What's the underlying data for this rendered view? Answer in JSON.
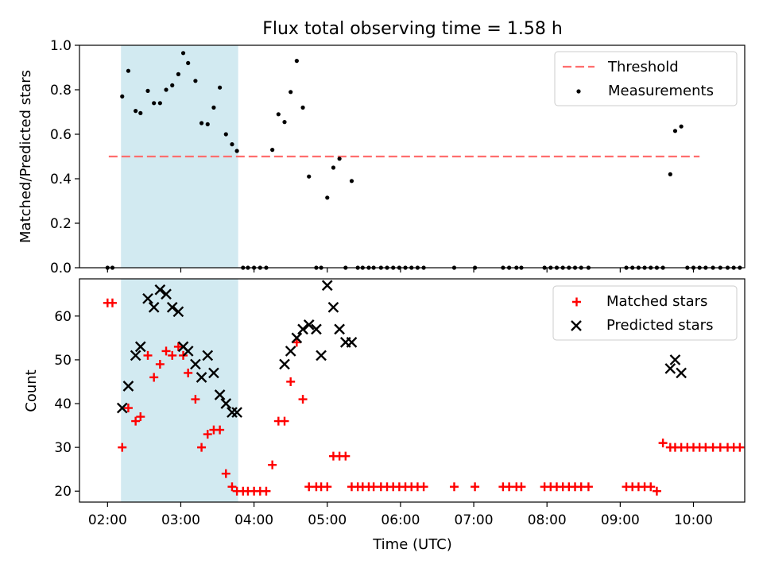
{
  "title": "Flux total observing time = 1.58 h",
  "colors": {
    "highlight": "#add8e6",
    "threshold": "#ff6e6e",
    "measurements": "#000000",
    "matched": "#ff0000",
    "predicted": "#000000"
  },
  "chart_data": [
    {
      "type": "scatter",
      "ylabel": "Matched/Predicted stars",
      "ylim": [
        0,
        1.0
      ],
      "yticks": [
        "0.0",
        "0.2",
        "0.4",
        "0.6",
        "0.8",
        "1.0"
      ],
      "xlim": [
        "01:37",
        "10:42"
      ],
      "highlight_span": [
        "02:11",
        "03:47"
      ],
      "legend_position": "top-right",
      "threshold": {
        "name": "Threshold",
        "y": 0.5,
        "x_range": [
          "02:01",
          "10:05"
        ]
      },
      "series": [
        {
          "name": "Measurements",
          "x": [
            "02:00",
            "02:04",
            "02:12",
            "02:17",
            "02:23",
            "02:27",
            "02:33",
            "02:38",
            "02:43",
            "02:48",
            "02:53",
            "02:58",
            "03:02",
            "03:06",
            "03:12",
            "03:17",
            "03:22",
            "03:27",
            "03:32",
            "03:37",
            "03:42",
            "03:46",
            "03:51",
            "03:55",
            "04:00",
            "04:05",
            "04:10",
            "04:15",
            "04:20",
            "04:25",
            "04:30",
            "04:35",
            "04:40",
            "04:45",
            "04:51",
            "04:55",
            "05:00",
            "05:05",
            "05:10",
            "05:15",
            "05:20",
            "05:25",
            "05:29",
            "05:34",
            "05:38",
            "05:44",
            "05:49",
            "05:54",
            "05:59",
            "06:04",
            "06:09",
            "06:14",
            "06:19",
            "06:44",
            "07:01",
            "07:24",
            "07:29",
            "07:35",
            "07:39",
            "07:58",
            "08:03",
            "08:08",
            "08:13",
            "08:18",
            "08:23",
            "08:28",
            "08:34",
            "09:05",
            "09:10",
            "09:15",
            "09:20",
            "09:25",
            "09:30",
            "09:35",
            "09:41",
            "09:45",
            "09:50",
            "09:55",
            "10:00",
            "10:05",
            "10:10",
            "10:16",
            "10:22",
            "10:28",
            "10:33",
            "10:38"
          ],
          "y": [
            0,
            0,
            0.77,
            0.885,
            0.705,
            0.695,
            0.795,
            0.74,
            0.74,
            0.8,
            0.82,
            0.87,
            0.965,
            0.92,
            0.84,
            0.65,
            0.645,
            0.72,
            0.81,
            0.6,
            0.555,
            0.525,
            0,
            0,
            0,
            0,
            0,
            0.53,
            0.69,
            0.655,
            0.79,
            0.93,
            0.72,
            0.41,
            0,
            0,
            0.315,
            0.45,
            0.49,
            0,
            0.39,
            0,
            0,
            0,
            0,
            0,
            0,
            0,
            0,
            0,
            0,
            0,
            0,
            0,
            0,
            0,
            0,
            0,
            0,
            0,
            0,
            0,
            0,
            0,
            0,
            0,
            0,
            0,
            0,
            0,
            0,
            0,
            0,
            0,
            0.42,
            0.615,
            0.635,
            0,
            0,
            0,
            0,
            0,
            0,
            0,
            0,
            0
          ]
        }
      ]
    },
    {
      "type": "scatter",
      "title": "",
      "xlabel": "Time (UTC)",
      "ylabel": "Count",
      "ylim": [
        17.5,
        68.5
      ],
      "yticks": [
        "20",
        "30",
        "40",
        "50",
        "60"
      ],
      "xlim": [
        "01:37",
        "10:42"
      ],
      "xticks": [
        "02:00",
        "03:00",
        "04:00",
        "05:00",
        "06:00",
        "07:00",
        "08:00",
        "09:00",
        "10:00"
      ],
      "highlight_span": [
        "02:11",
        "03:47"
      ],
      "legend_position": "top-right",
      "series": [
        {
          "name": "Matched stars",
          "marker": "+",
          "x": [
            "02:00",
            "02:04",
            "02:12",
            "02:17",
            "02:23",
            "02:27",
            "02:33",
            "02:38",
            "02:43",
            "02:48",
            "02:53",
            "02:58",
            "03:02",
            "03:06",
            "03:12",
            "03:17",
            "03:22",
            "03:27",
            "03:32",
            "03:37",
            "03:42",
            "03:46",
            "03:51",
            "03:55",
            "04:00",
            "04:05",
            "04:10",
            "04:15",
            "04:20",
            "04:25",
            "04:30",
            "04:35",
            "04:40",
            "04:45",
            "04:51",
            "04:55",
            "05:00",
            "05:05",
            "05:10",
            "05:15",
            "05:20",
            "05:25",
            "05:29",
            "05:34",
            "05:38",
            "05:44",
            "05:49",
            "05:54",
            "05:59",
            "06:04",
            "06:09",
            "06:14",
            "06:19",
            "06:44",
            "07:01",
            "07:24",
            "07:29",
            "07:35",
            "07:39",
            "07:58",
            "08:03",
            "08:08",
            "08:13",
            "08:18",
            "08:23",
            "08:28",
            "08:34",
            "09:05",
            "09:10",
            "09:15",
            "09:20",
            "09:25",
            "09:30",
            "09:35",
            "09:41",
            "09:45",
            "09:50",
            "09:55",
            "10:00",
            "10:05",
            "10:10",
            "10:16",
            "10:22",
            "10:28",
            "10:33",
            "10:38"
          ],
          "y": [
            63,
            63,
            30,
            39,
            36,
            37,
            51,
            46,
            49,
            52,
            51,
            53,
            51,
            47,
            41,
            30,
            33,
            34,
            34,
            24,
            21,
            20,
            20,
            20,
            20,
            20,
            20,
            26,
            36,
            36,
            45,
            54,
            41,
            21,
            21,
            21,
            21,
            28,
            28,
            28,
            21,
            21,
            21,
            21,
            21,
            21,
            21,
            21,
            21,
            21,
            21,
            21,
            21,
            21,
            21,
            21,
            21,
            21,
            21,
            21,
            21,
            21,
            21,
            21,
            21,
            21,
            21,
            21,
            21,
            21,
            21,
            21,
            20,
            31,
            30,
            30,
            30,
            30,
            30,
            30,
            30,
            30,
            30,
            30,
            30,
            30
          ]
        },
        {
          "name": "Predicted stars",
          "marker": "x",
          "x": [
            "02:12",
            "02:17",
            "02:23",
            "02:27",
            "02:33",
            "02:38",
            "02:43",
            "02:48",
            "02:53",
            "02:58",
            "03:02",
            "03:06",
            "03:12",
            "03:17",
            "03:22",
            "03:27",
            "03:32",
            "03:37",
            "03:42",
            "03:46",
            "04:25",
            "04:30",
            "04:35",
            "04:40",
            "04:45",
            "04:51",
            "04:55",
            "05:00",
            "05:05",
            "05:10",
            "05:15",
            "05:20",
            "09:41",
            "09:45",
            "09:50"
          ],
          "y": [
            39,
            44,
            51,
            53,
            64,
            62,
            66,
            65,
            62,
            61,
            53,
            52,
            49,
            46,
            51,
            47,
            42,
            40,
            38,
            38,
            49,
            52,
            55,
            57,
            58,
            57,
            51,
            67,
            62,
            57,
            54,
            54,
            48,
            50,
            47
          ]
        }
      ]
    }
  ]
}
